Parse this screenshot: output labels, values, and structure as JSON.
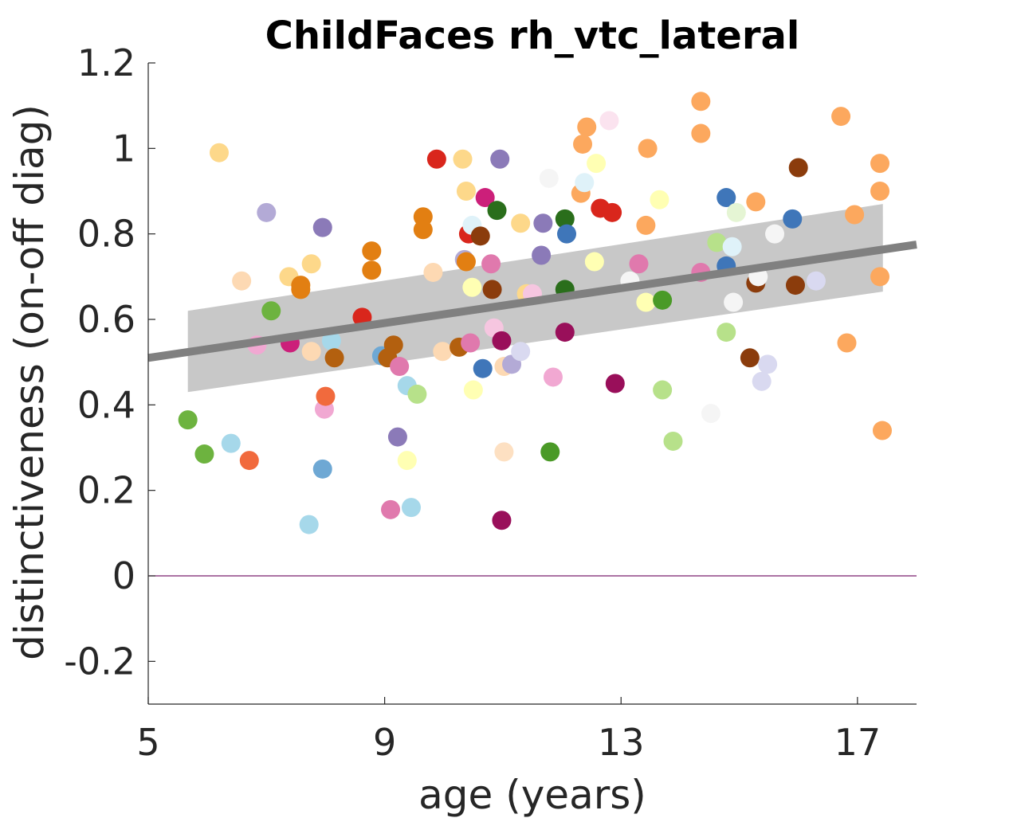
{
  "chart_data": {
    "type": "scatter",
    "title": "ChildFaces rh_vtc_lateral",
    "xlabel": "age (years)",
    "ylabel": "distinctiveness (on-off diag)",
    "xlim": [
      5,
      18
    ],
    "ylim": [
      -0.3,
      1.2
    ],
    "xticks": [
      5,
      9,
      13,
      17
    ],
    "xtick_labels": [
      "5",
      "9",
      "13",
      "17"
    ],
    "yticks": [
      -0.2,
      0,
      0.2,
      0.4,
      0.6,
      0.8,
      1.0,
      1.2
    ],
    "ytick_labels": [
      "-0.2",
      "0",
      "0.2",
      "0.4",
      "0.6",
      "0.8",
      "1",
      "1.2"
    ],
    "grid": false,
    "legend": "none",
    "zero_line_color": "#7a1f6e",
    "fit_line": {
      "x": [
        5,
        18
      ],
      "y": [
        0.51,
        0.775
      ],
      "color": "#808080"
    },
    "confidence_band": {
      "x": [
        5.67,
        17.43
      ],
      "upper": [
        0.62,
        0.87
      ],
      "lower": [
        0.43,
        0.665
      ],
      "color": "#c8c8c8"
    },
    "points": [
      {
        "x": 5.67,
        "y": 0.365,
        "color": "#6db33f"
      },
      {
        "x": 5.95,
        "y": 0.285,
        "color": "#6db33f"
      },
      {
        "x": 6.2,
        "y": 0.99,
        "color": "#fdd88a"
      },
      {
        "x": 6.4,
        "y": 0.31,
        "color": "#a6d8ea"
      },
      {
        "x": 6.58,
        "y": 0.69,
        "color": "#fdd9b3"
      },
      {
        "x": 6.71,
        "y": 0.27,
        "color": "#f16a3d"
      },
      {
        "x": 6.84,
        "y": 0.54,
        "color": "#f1a8d2"
      },
      {
        "x": 7.0,
        "y": 0.85,
        "color": "#b3aad6"
      },
      {
        "x": 7.08,
        "y": 0.62,
        "color": "#6db33f"
      },
      {
        "x": 7.38,
        "y": 0.7,
        "color": "#fdd88a"
      },
      {
        "x": 7.4,
        "y": 0.545,
        "color": "#cc1f7a"
      },
      {
        "x": 7.58,
        "y": 0.68,
        "color": "#e27f12"
      },
      {
        "x": 7.58,
        "y": 0.67,
        "color": "#e27f12"
      },
      {
        "x": 7.72,
        "y": 0.12,
        "color": "#a6d8ea"
      },
      {
        "x": 7.76,
        "y": 0.73,
        "color": "#fdd88a"
      },
      {
        "x": 7.76,
        "y": 0.525,
        "color": "#fdd9b3"
      },
      {
        "x": 7.95,
        "y": 0.815,
        "color": "#8b7ab8"
      },
      {
        "x": 7.95,
        "y": 0.25,
        "color": "#6ea8d4"
      },
      {
        "x": 7.98,
        "y": 0.39,
        "color": "#f1a8d2"
      },
      {
        "x": 8.0,
        "y": 0.42,
        "color": "#f16a3d"
      },
      {
        "x": 8.1,
        "y": 0.55,
        "color": "#a6d8ea"
      },
      {
        "x": 8.15,
        "y": 0.51,
        "color": "#b3600f"
      },
      {
        "x": 8.62,
        "y": 0.605,
        "color": "#d9261c"
      },
      {
        "x": 8.78,
        "y": 0.76,
        "color": "#e27f12"
      },
      {
        "x": 8.78,
        "y": 0.715,
        "color": "#e27f12"
      },
      {
        "x": 8.95,
        "y": 0.515,
        "color": "#6ea8d4"
      },
      {
        "x": 9.05,
        "y": 0.51,
        "color": "#b3600f"
      },
      {
        "x": 9.1,
        "y": 0.155,
        "color": "#e079ad"
      },
      {
        "x": 9.15,
        "y": 0.54,
        "color": "#b3600f"
      },
      {
        "x": 9.22,
        "y": 0.325,
        "color": "#8b7ab8"
      },
      {
        "x": 9.25,
        "y": 0.49,
        "color": "#e079ad"
      },
      {
        "x": 9.38,
        "y": 0.445,
        "color": "#a6d8ea"
      },
      {
        "x": 9.38,
        "y": 0.27,
        "color": "#ffffb3"
      },
      {
        "x": 9.45,
        "y": 0.16,
        "color": "#a6d8ea"
      },
      {
        "x": 9.55,
        "y": 0.425,
        "color": "#b7e18a"
      },
      {
        "x": 9.65,
        "y": 0.84,
        "color": "#e27f12"
      },
      {
        "x": 9.65,
        "y": 0.81,
        "color": "#e27f12"
      },
      {
        "x": 9.82,
        "y": 0.71,
        "color": "#fdd9b3"
      },
      {
        "x": 9.88,
        "y": 0.975,
        "color": "#d9261c"
      },
      {
        "x": 9.98,
        "y": 0.525,
        "color": "#fdd9b3"
      },
      {
        "x": 10.26,
        "y": 0.535,
        "color": "#b3600f"
      },
      {
        "x": 10.32,
        "y": 0.975,
        "color": "#fdd88a"
      },
      {
        "x": 10.35,
        "y": 0.74,
        "color": "#b3aad6"
      },
      {
        "x": 10.38,
        "y": 0.735,
        "color": "#e27f12"
      },
      {
        "x": 10.38,
        "y": 0.9,
        "color": "#fdd88a"
      },
      {
        "x": 10.42,
        "y": 0.8,
        "color": "#d9261c"
      },
      {
        "x": 10.45,
        "y": 0.545,
        "color": "#e079ad"
      },
      {
        "x": 10.48,
        "y": 0.82,
        "color": "#dff2f9"
      },
      {
        "x": 10.48,
        "y": 0.675,
        "color": "#ffffb3"
      },
      {
        "x": 10.5,
        "y": 0.435,
        "color": "#ffffb3"
      },
      {
        "x": 10.62,
        "y": 0.795,
        "color": "#8b3c0c"
      },
      {
        "x": 10.66,
        "y": 0.485,
        "color": "#3f76b9"
      },
      {
        "x": 10.7,
        "y": 0.885,
        "color": "#cc1f7a"
      },
      {
        "x": 10.8,
        "y": 0.73,
        "color": "#e079ad"
      },
      {
        "x": 10.82,
        "y": 0.67,
        "color": "#8b3c0c"
      },
      {
        "x": 10.85,
        "y": 0.58,
        "color": "#f6c6e0"
      },
      {
        "x": 10.9,
        "y": 0.855,
        "color": "#2a6e1b"
      },
      {
        "x": 10.95,
        "y": 0.975,
        "color": "#8b7ab8"
      },
      {
        "x": 10.98,
        "y": 0.55,
        "color": "#990f5a"
      },
      {
        "x": 10.98,
        "y": 0.13,
        "color": "#990f5a"
      },
      {
        "x": 11.02,
        "y": 0.49,
        "color": "#fdd9b3"
      },
      {
        "x": 11.02,
        "y": 0.29,
        "color": "#fde0c2"
      },
      {
        "x": 11.15,
        "y": 0.495,
        "color": "#b3aad6"
      },
      {
        "x": 11.3,
        "y": 0.525,
        "color": "#d9d9f0"
      },
      {
        "x": 11.3,
        "y": 0.825,
        "color": "#fdd88a"
      },
      {
        "x": 11.4,
        "y": 0.66,
        "color": "#fdd88a"
      },
      {
        "x": 11.5,
        "y": 0.66,
        "color": "#f6c6e0"
      },
      {
        "x": 11.65,
        "y": 0.75,
        "color": "#8b7ab8"
      },
      {
        "x": 11.68,
        "y": 0.825,
        "color": "#8b7ab8"
      },
      {
        "x": 11.78,
        "y": 0.93,
        "color": "#f5f5f5"
      },
      {
        "x": 11.8,
        "y": 0.29,
        "color": "#4a9a27"
      },
      {
        "x": 11.85,
        "y": 0.465,
        "color": "#f1a8d2"
      },
      {
        "x": 12.05,
        "y": 0.835,
        "color": "#2a6e1b"
      },
      {
        "x": 12.05,
        "y": 0.67,
        "color": "#2a6e1b"
      },
      {
        "x": 12.05,
        "y": 0.57,
        "color": "#990f5a"
      },
      {
        "x": 12.08,
        "y": 0.8,
        "color": "#3f76b9"
      },
      {
        "x": 12.32,
        "y": 0.895,
        "color": "#fca85e"
      },
      {
        "x": 12.35,
        "y": 1.01,
        "color": "#fca85e"
      },
      {
        "x": 12.38,
        "y": 0.92,
        "color": "#dff2f9"
      },
      {
        "x": 12.42,
        "y": 1.05,
        "color": "#fca85e"
      },
      {
        "x": 12.55,
        "y": 0.735,
        "color": "#ffffb3"
      },
      {
        "x": 12.58,
        "y": 0.965,
        "color": "#ffffb3"
      },
      {
        "x": 12.65,
        "y": 0.86,
        "color": "#d9261c"
      },
      {
        "x": 12.8,
        "y": 1.065,
        "color": "#fbe3ef"
      },
      {
        "x": 12.85,
        "y": 0.85,
        "color": "#d9261c"
      },
      {
        "x": 12.9,
        "y": 0.45,
        "color": "#990f5a"
      },
      {
        "x": 13.15,
        "y": 0.69,
        "color": "#f5f5f5"
      },
      {
        "x": 13.3,
        "y": 0.73,
        "color": "#e079ad"
      },
      {
        "x": 13.42,
        "y": 0.82,
        "color": "#fca85e"
      },
      {
        "x": 13.42,
        "y": 0.64,
        "color": "#ffffb3"
      },
      {
        "x": 13.45,
        "y": 1.0,
        "color": "#fca85e"
      },
      {
        "x": 13.65,
        "y": 0.88,
        "color": "#ffffb3"
      },
      {
        "x": 13.7,
        "y": 0.645,
        "color": "#4a9a27"
      },
      {
        "x": 13.7,
        "y": 0.435,
        "color": "#b7e18a"
      },
      {
        "x": 13.88,
        "y": 0.315,
        "color": "#b7e18a"
      },
      {
        "x": 14.35,
        "y": 1.11,
        "color": "#fca85e"
      },
      {
        "x": 14.35,
        "y": 1.035,
        "color": "#fca85e"
      },
      {
        "x": 14.35,
        "y": 0.71,
        "color": "#e079ad"
      },
      {
        "x": 14.52,
        "y": 0.38,
        "color": "#f5f5f5"
      },
      {
        "x": 14.62,
        "y": 0.78,
        "color": "#b7e18a"
      },
      {
        "x": 14.78,
        "y": 0.885,
        "color": "#3f76b9"
      },
      {
        "x": 14.78,
        "y": 0.725,
        "color": "#3f76b9"
      },
      {
        "x": 14.78,
        "y": 0.57,
        "color": "#b7e18a"
      },
      {
        "x": 14.88,
        "y": 0.77,
        "color": "#dff2f9"
      },
      {
        "x": 14.9,
        "y": 0.64,
        "color": "#f5f5f5"
      },
      {
        "x": 14.95,
        "y": 0.85,
        "color": "#e5f5d4"
      },
      {
        "x": 15.18,
        "y": 0.51,
        "color": "#8b3c0c"
      },
      {
        "x": 15.28,
        "y": 0.875,
        "color": "#fca85e"
      },
      {
        "x": 15.28,
        "y": 0.685,
        "color": "#8b3c0c"
      },
      {
        "x": 15.32,
        "y": 0.7,
        "color": "#f5f5f5"
      },
      {
        "x": 15.38,
        "y": 0.455,
        "color": "#d9d9f0"
      },
      {
        "x": 15.48,
        "y": 0.495,
        "color": "#d9d9f0"
      },
      {
        "x": 15.6,
        "y": 0.8,
        "color": "#f5f5f5"
      },
      {
        "x": 15.9,
        "y": 0.835,
        "color": "#3f76b9"
      },
      {
        "x": 15.95,
        "y": 0.68,
        "color": "#8b3c0c"
      },
      {
        "x": 16.0,
        "y": 0.955,
        "color": "#8b3c0c"
      },
      {
        "x": 16.3,
        "y": 0.69,
        "color": "#d9d9f0"
      },
      {
        "x": 16.72,
        "y": 1.075,
        "color": "#fca85e"
      },
      {
        "x": 16.82,
        "y": 0.545,
        "color": "#fca85e"
      },
      {
        "x": 16.95,
        "y": 0.845,
        "color": "#fca85e"
      },
      {
        "x": 17.38,
        "y": 0.965,
        "color": "#fca85e"
      },
      {
        "x": 17.38,
        "y": 0.9,
        "color": "#fca85e"
      },
      {
        "x": 17.38,
        "y": 0.7,
        "color": "#fca85e"
      },
      {
        "x": 17.42,
        "y": 0.34,
        "color": "#fca85e"
      }
    ]
  }
}
